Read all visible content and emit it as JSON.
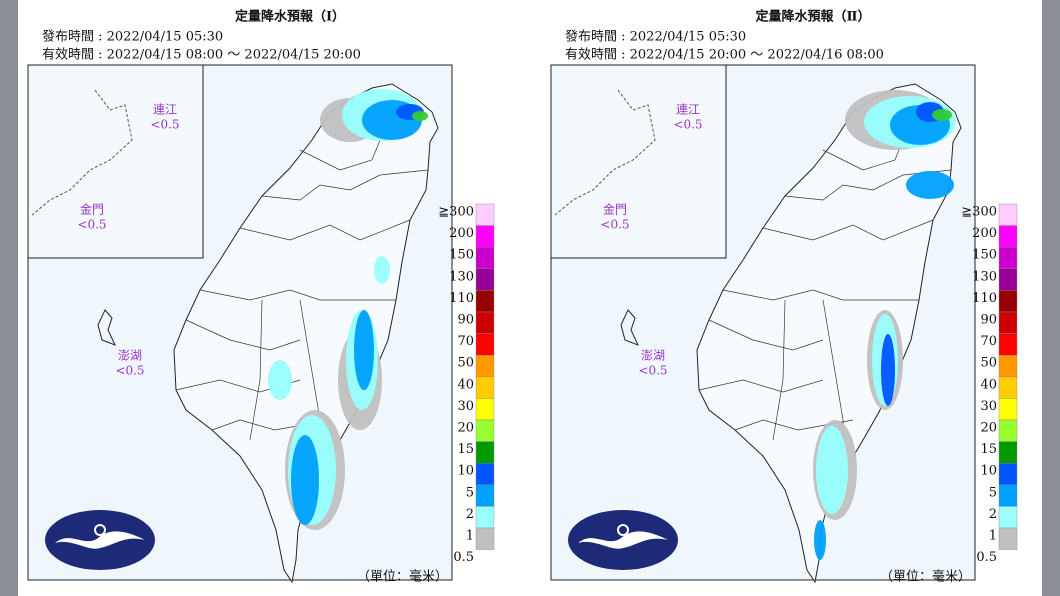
{
  "panels": [
    {
      "title": "定量降水預報（Ⅰ）",
      "issued": "發布時間 : 2022/04/15 05:30",
      "valid": "有效時間 : 2022/04/15 08:00 ～ 2022/04/15 20:00",
      "islands": [
        {
          "name": "連江",
          "value": "<0.5"
        },
        {
          "name": "金門",
          "value": "<0.5"
        },
        {
          "name": "澎湖",
          "value": "<0.5"
        }
      ],
      "unit": "（單位：毫米）"
    },
    {
      "title": "定量降水預報（Ⅱ）",
      "issued": "發布時間 : 2022/04/15 05:30",
      "valid": "有效時間 : 2022/04/15 20:00 ～ 2022/04/16 08:00",
      "islands": [
        {
          "name": "連江",
          "value": "<0.5"
        },
        {
          "name": "金門",
          "value": "<0.5"
        },
        {
          "name": "澎湖",
          "value": "<0.5"
        }
      ],
      "unit": "（單位：毫米）"
    }
  ],
  "legend": {
    "levels": [
      "≧300",
      "200",
      "150",
      "130",
      "110",
      "90",
      "70",
      "50",
      "40",
      "30",
      "20",
      "15",
      "10",
      "5",
      "2",
      "1",
      "0.5"
    ],
    "colors": [
      "#ffccff",
      "#ff00ff",
      "#cc00cc",
      "#990099",
      "#990000",
      "#cc0000",
      "#ff0000",
      "#ff9900",
      "#ffcc00",
      "#ffff00",
      "#99ff33",
      "#009900",
      "#0055ff",
      "#00a0ff",
      "#99ffff",
      "#c0c0c0"
    ]
  }
}
